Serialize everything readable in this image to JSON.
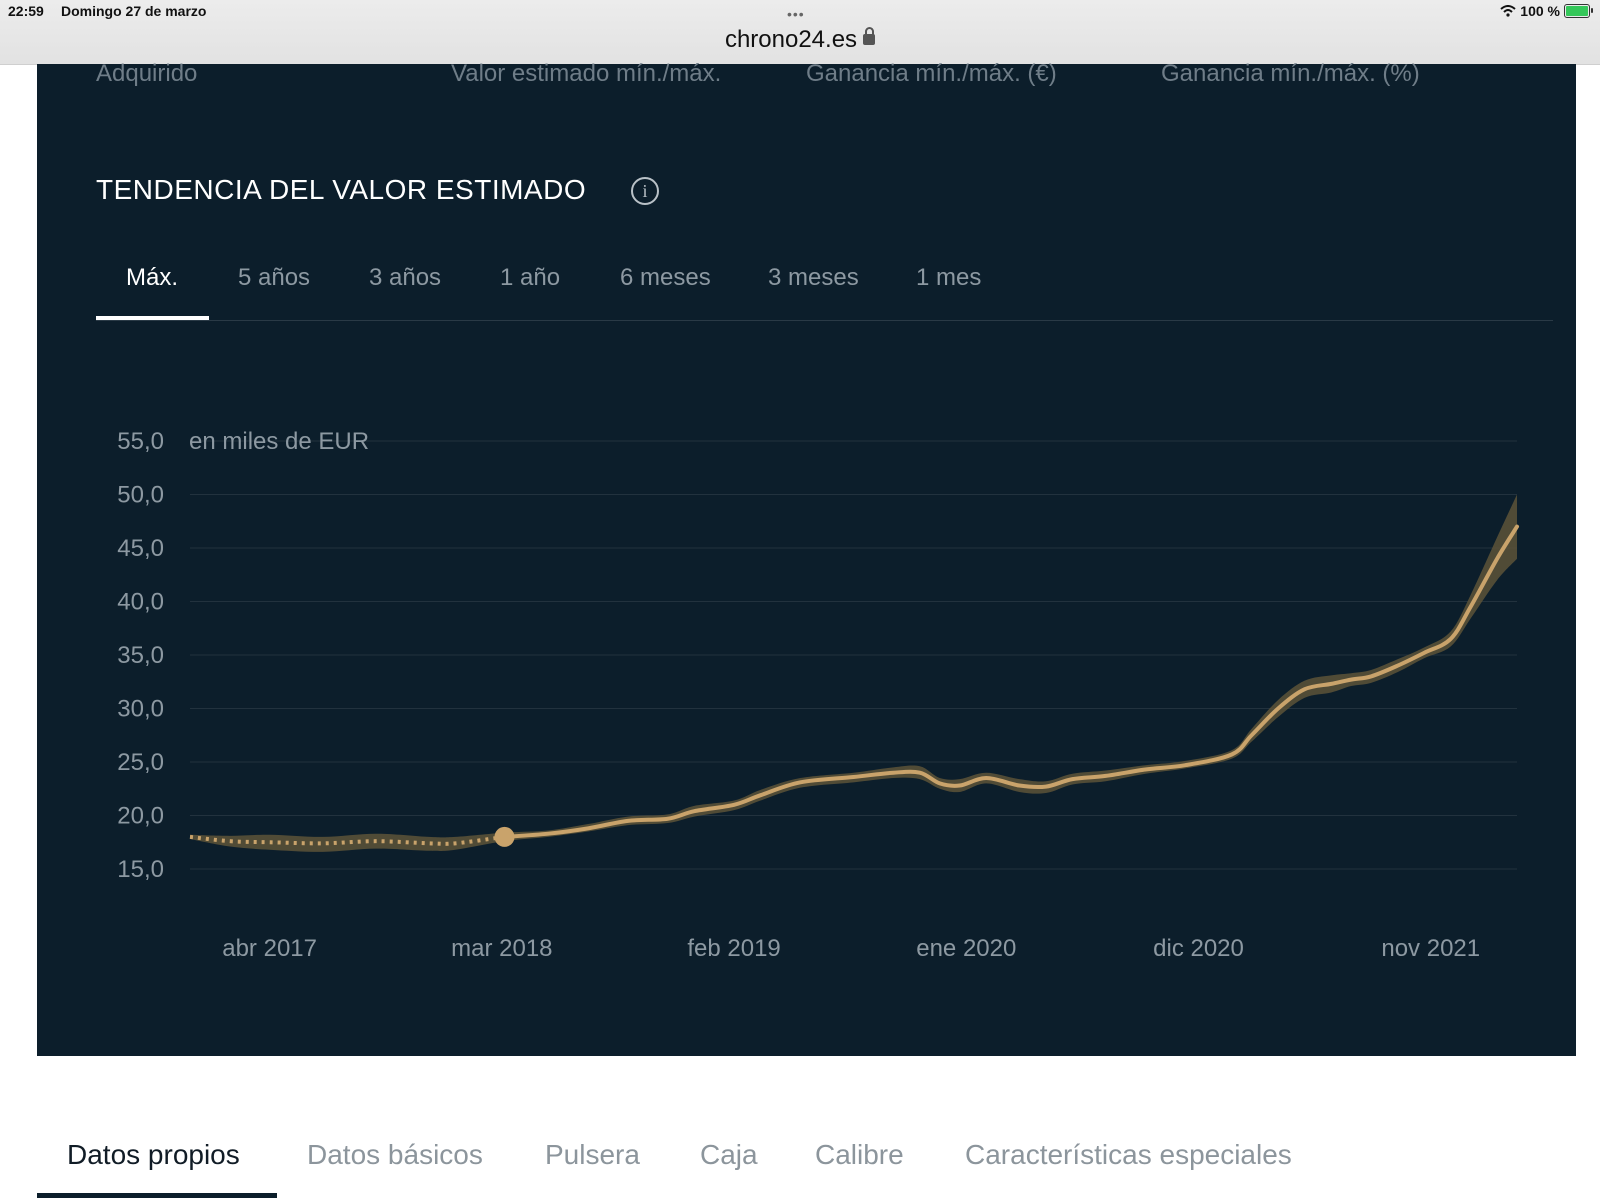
{
  "status_bar": {
    "time": "22:59",
    "date": "Domingo 27 de marzo",
    "battery": "100 %"
  },
  "browser": {
    "url": "chrono24.es"
  },
  "summary_labels": [
    "Adquirido",
    "Valor estimado mín./máx.",
    "Ganancia mín./máx. (€)",
    "Ganancia mín./máx. (%)"
  ],
  "section": {
    "title": "TENDENCIA DEL VALOR ESTIMADO"
  },
  "range_tabs": [
    {
      "label": "Máx.",
      "active": true
    },
    {
      "label": "5 años",
      "active": false
    },
    {
      "label": "3 años",
      "active": false
    },
    {
      "label": "1 año",
      "active": false
    },
    {
      "label": "6 meses",
      "active": false
    },
    {
      "label": "3 meses",
      "active": false
    },
    {
      "label": "1 mes",
      "active": false
    }
  ],
  "bottom_tabs": [
    {
      "label": "Datos propios",
      "active": true
    },
    {
      "label": "Datos básicos",
      "active": false
    },
    {
      "label": "Pulsera",
      "active": false
    },
    {
      "label": "Caja",
      "active": false
    },
    {
      "label": "Calibre",
      "active": false
    },
    {
      "label": "Características especiales",
      "active": false
    }
  ],
  "colors": {
    "panel": "#0c1e2b",
    "line": "#c9a36b",
    "band": "#5d5438",
    "grid": "#22323e"
  },
  "chart_data": {
    "type": "line",
    "unit_label": "en miles de EUR",
    "ylim": [
      15,
      55
    ],
    "yticks": [
      "55,0",
      "50,0",
      "45,0",
      "40,0",
      "35,0",
      "30,0",
      "25,0",
      "20,0",
      "15,0"
    ],
    "xtick_labels": [
      "abr 2017",
      "mar 2018",
      "feb 2019",
      "ene 2020",
      "dic 2020",
      "nov 2021"
    ],
    "xtick_t": [
      0.06,
      0.235,
      0.41,
      0.585,
      0.76,
      0.935
    ],
    "grid": true,
    "purchase_marker_t": 0.237,
    "series": [
      {
        "t": [
          0,
          0.03,
          0.06,
          0.1,
          0.14,
          0.18,
          0.2,
          0.237,
          0.27,
          0.3,
          0.33,
          0.36,
          0.38,
          0.41,
          0.43,
          0.46,
          0.5,
          0.53,
          0.55,
          0.565,
          0.58,
          0.6,
          0.625,
          0.645,
          0.665,
          0.69,
          0.72,
          0.75,
          0.785,
          0.8,
          0.82,
          0.84,
          0.86,
          0.875,
          0.89,
          0.91,
          0.93,
          0.95,
          0.965,
          0.985,
          1.0
        ],
        "value": [
          18.0,
          17.6,
          17.5,
          17.4,
          17.6,
          17.4,
          17.4,
          18.0,
          18.3,
          18.8,
          19.5,
          19.7,
          20.4,
          21.0,
          21.9,
          23.1,
          23.6,
          24.0,
          24.0,
          23.0,
          22.8,
          23.5,
          22.8,
          22.7,
          23.4,
          23.7,
          24.3,
          24.7,
          25.7,
          27.5,
          30.0,
          31.8,
          32.3,
          32.7,
          33.0,
          34.0,
          35.2,
          36.5,
          39.5,
          44.0,
          47.0
        ],
        "lower": [
          17.8,
          17.1,
          16.8,
          16.6,
          16.9,
          16.7,
          16.8,
          17.6,
          18.0,
          18.5,
          19.1,
          19.3,
          19.9,
          20.5,
          21.4,
          22.6,
          23.1,
          23.5,
          23.4,
          22.5,
          22.2,
          23.0,
          22.2,
          22.1,
          22.9,
          23.2,
          23.9,
          24.4,
          25.3,
          26.9,
          29.2,
          31.0,
          31.5,
          32.1,
          32.4,
          33.4,
          34.7,
          35.8,
          38.4,
          42.0,
          44.0
        ],
        "upper": [
          18.2,
          18.1,
          18.2,
          18.0,
          18.3,
          18.0,
          18.0,
          18.4,
          18.6,
          19.2,
          19.9,
          20.1,
          20.9,
          21.4,
          22.4,
          23.5,
          24.0,
          24.5,
          24.6,
          23.5,
          23.4,
          24.0,
          23.4,
          23.2,
          23.9,
          24.2,
          24.7,
          25.1,
          26.1,
          28.1,
          30.8,
          32.6,
          33.1,
          33.3,
          33.6,
          34.6,
          35.7,
          37.2,
          40.6,
          46.0,
          50.0
        ],
        "dotted_until_t": 0.237
      }
    ]
  }
}
